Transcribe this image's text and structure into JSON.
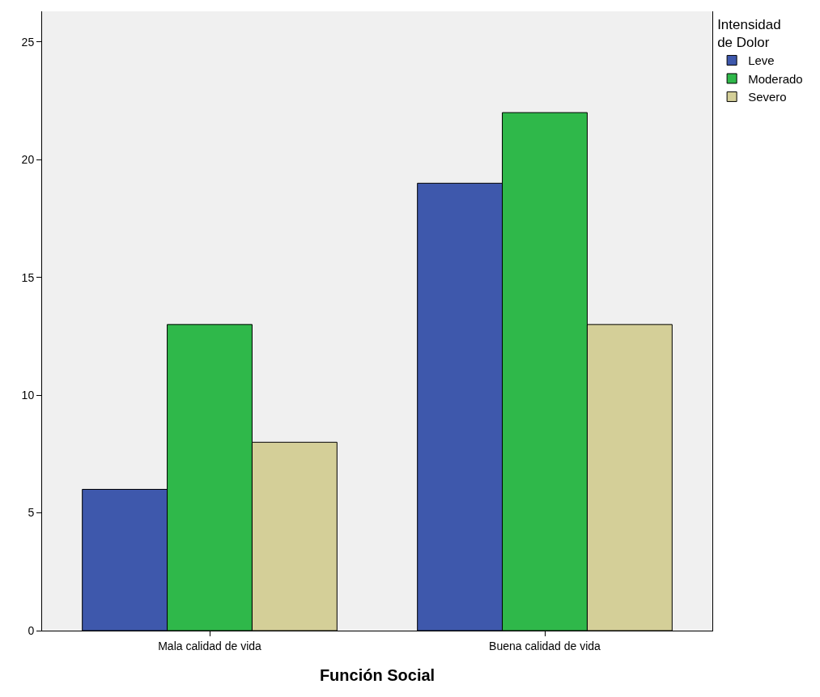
{
  "chart_data": {
    "type": "bar",
    "xlabel": "Función Social",
    "legend_title": "Intensidad\nde Dolor",
    "categories": [
      "Mala calidad de vida",
      "Buena calidad de vida"
    ],
    "series": [
      {
        "name": "Leve",
        "color": "#3e58ac",
        "values": [
          6,
          19
        ]
      },
      {
        "name": "Moderado",
        "color": "#2fb84a",
        "values": [
          13,
          22
        ]
      },
      {
        "name": "Severo",
        "color": "#d4cf98",
        "values": [
          8,
          13
        ]
      }
    ],
    "ylim": [
      0,
      26.3
    ],
    "yticks": [
      0,
      5,
      10,
      15,
      20,
      25
    ],
    "grid": false,
    "legend": "top right"
  }
}
